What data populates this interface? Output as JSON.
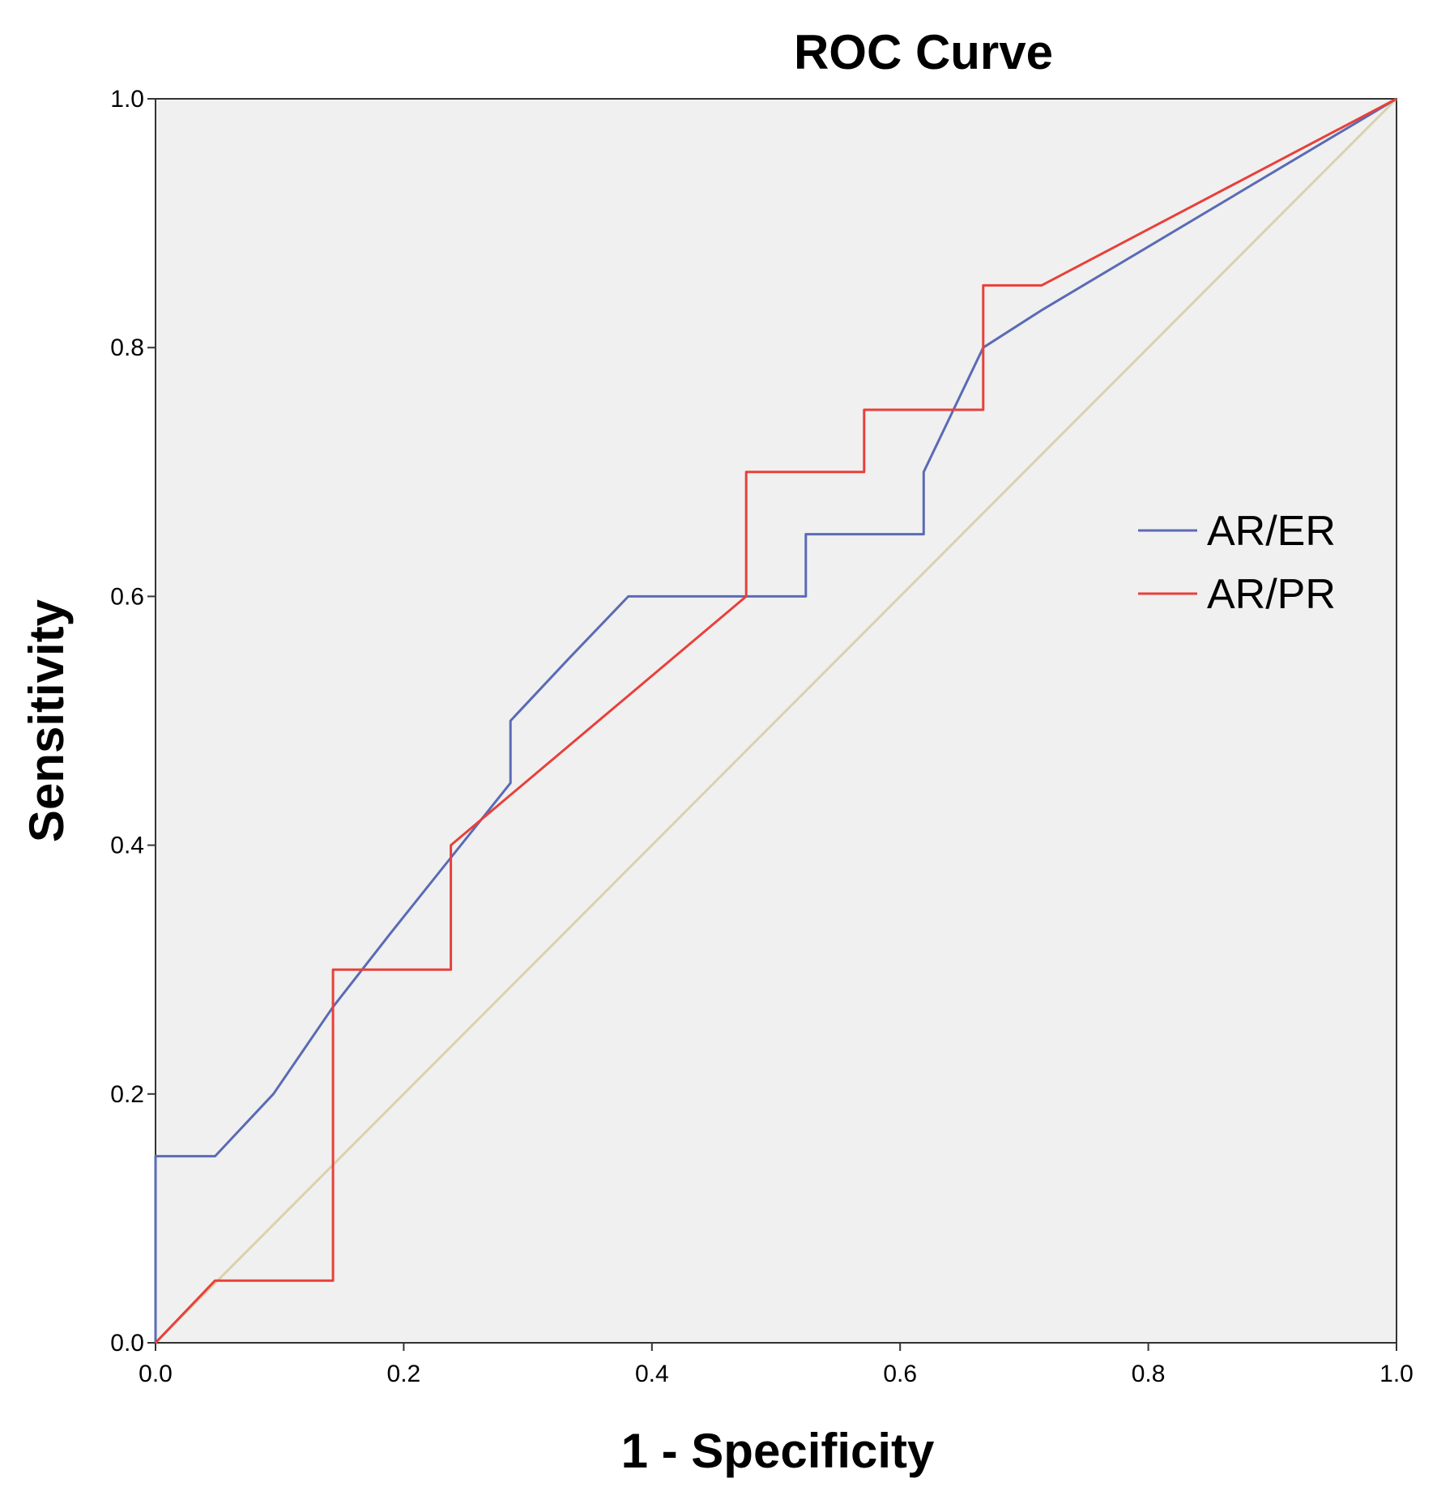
{
  "chart_data": {
    "type": "line",
    "title": "ROC Curve",
    "xlabel": "1 - Specificity",
    "ylabel": "Sensitivity",
    "xlim": [
      0,
      1
    ],
    "ylim": [
      0,
      1
    ],
    "xticks": [
      "0.0",
      "0.2",
      "0.4",
      "0.6",
      "0.8",
      "1.0"
    ],
    "yticks": [
      "0.0",
      "0.2",
      "0.4",
      "0.6",
      "0.8",
      "1.0"
    ],
    "grid": false,
    "legend_position": "right",
    "background_color": "#f0f0f0",
    "series": [
      {
        "name": "AR/ER",
        "color": "#5a6bb5",
        "x": [
          0,
          0,
          0.048,
          0.095,
          0.143,
          0.19,
          0.238,
          0.286,
          0.286,
          0.333,
          0.381,
          0.429,
          0.476,
          0.524,
          0.524,
          0.571,
          0.619,
          0.619,
          0.667,
          0.714,
          1.0
        ],
        "y": [
          0,
          0.15,
          0.15,
          0.2,
          0.27,
          0.33,
          0.39,
          0.45,
          0.5,
          0.55,
          0.6,
          0.6,
          0.6,
          0.6,
          0.65,
          0.65,
          0.65,
          0.7,
          0.8,
          0.83,
          1.0
        ]
      },
      {
        "name": "AR/PR",
        "color": "#e8403a",
        "x": [
          0,
          0.048,
          0.143,
          0.143,
          0.238,
          0.238,
          0.476,
          0.476,
          0.571,
          0.571,
          0.667,
          0.667,
          0.714,
          1.0
        ],
        "y": [
          0,
          0.05,
          0.05,
          0.3,
          0.3,
          0.4,
          0.6,
          0.7,
          0.7,
          0.75,
          0.75,
          0.85,
          0.85,
          1.0
        ]
      },
      {
        "name": "Reference Line",
        "color": "#d8d2b0",
        "x": [
          0,
          1
        ],
        "y": [
          0,
          1
        ],
        "show_in_legend": false
      }
    ]
  }
}
